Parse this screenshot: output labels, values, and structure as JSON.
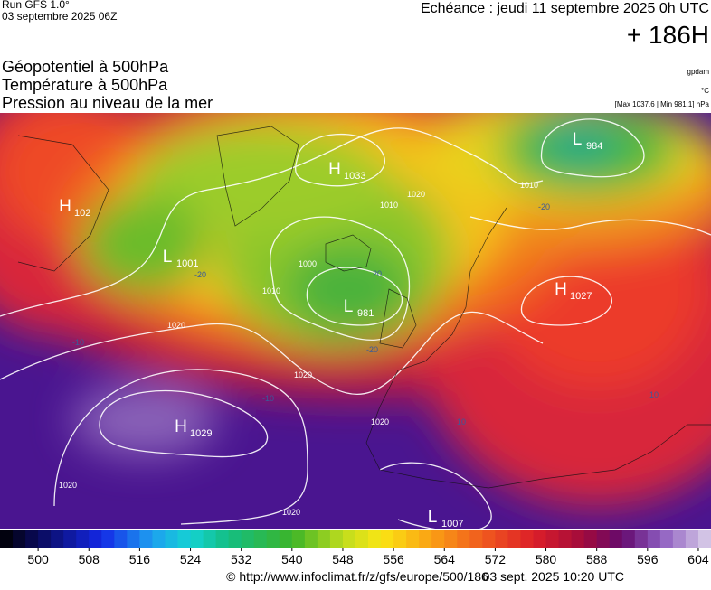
{
  "header": {
    "run": "Run GFS 1.0°",
    "run_date": "03 septembre 2025 06Z",
    "valid": "Echéance : jeudi 11 septembre 2025 0h UTC",
    "lead": "+ 186H",
    "layers": [
      "Géopotentiel à 500hPa",
      "Température à 500hPa",
      "Pression au niveau de la mer"
    ],
    "units": [
      "gpdam",
      "°C",
      "[Max 1037.6 | Min 981.1] hPa"
    ]
  },
  "map": {
    "systems": [
      {
        "type": "H",
        "value": 1033
      },
      {
        "type": "H",
        "value": 102
      },
      {
        "type": "L",
        "value": 1001
      },
      {
        "type": "L",
        "value": 981
      },
      {
        "type": "L",
        "value": 984
      },
      {
        "type": "H",
        "value": 1027
      },
      {
        "type": "H",
        "value": 1029
      },
      {
        "type": "L",
        "value": 1007
      }
    ],
    "isobar_labels": [
      1020,
      1020,
      1010,
      1000,
      1010,
      1020,
      1020,
      1020,
      1010,
      1020
    ],
    "temperature_labels": [
      -10,
      -20,
      -20,
      -10,
      10,
      20,
      -20,
      10
    ]
  },
  "scale": {
    "min": 494,
    "max": 606,
    "step": 2,
    "ticks": [
      500,
      508,
      516,
      524,
      532,
      540,
      548,
      556,
      564,
      572,
      580,
      588,
      596,
      604
    ]
  },
  "footer": {
    "source": "© http://www.infoclimat.fr/z/gfs/europe/500/186",
    "generated": "03 sept. 2025 10:20 UTC"
  }
}
